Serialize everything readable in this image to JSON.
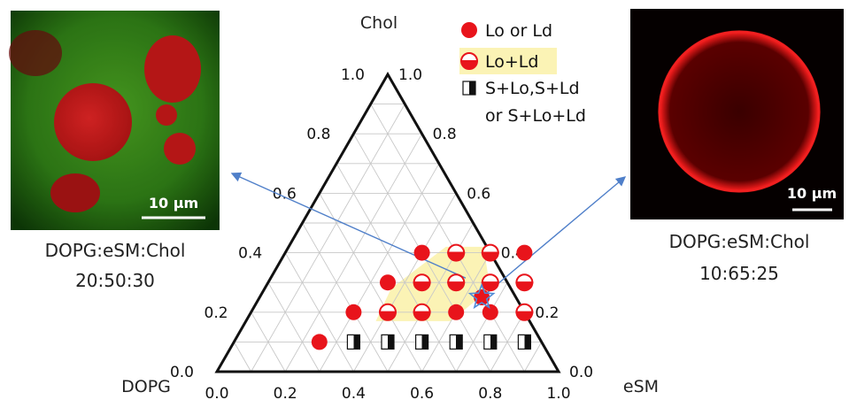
{
  "ternary": {
    "apex_labels": {
      "top": "Chol",
      "left": "DOPG",
      "right": "eSM"
    },
    "ticks": {
      "bottom": [
        "0.0",
        "0.2",
        "0.4",
        "0.6",
        "0.8",
        "1.0"
      ],
      "left": [
        "1.0",
        "0.8",
        "0.6",
        "0.4",
        "0.2",
        "0.0"
      ],
      "right": [
        "1.0",
        "0.8",
        "0.6",
        "0.4",
        "0.2",
        "0.0"
      ]
    },
    "colors": {
      "lo_ld": "#e8141b",
      "lo_plus_ld_region": "#fbf3b5",
      "arrow": "#4f7fc9",
      "star": "#4f8ad6"
    }
  },
  "legend": {
    "lo_or_ld": "Lo or Ld",
    "lo_plus_ld": "Lo+Ld",
    "solid_line1": "S+Lo,S+Ld",
    "solid_line2": "or S+Lo+Ld"
  },
  "left_panel": {
    "scale_bar": "10 µm",
    "caption_line1": "DOPG:eSM:Chol",
    "caption_line2": "20:50:30"
  },
  "right_panel": {
    "scale_bar": "10 µm",
    "caption_line1": "DOPG:eSM:Chol",
    "caption_line2": "10:65:25"
  },
  "chart_data": {
    "type": "scatter",
    "axes": [
      "DOPG",
      "eSM",
      "Chol"
    ],
    "points": [
      {
        "eSM": 0.25,
        "Chol": 0.1,
        "phase": "Lo or Ld"
      },
      {
        "eSM": 0.3,
        "Chol": 0.2,
        "phase": "Lo or Ld"
      },
      {
        "eSM": 0.35,
        "Chol": 0.3,
        "phase": "Lo or Ld"
      },
      {
        "eSM": 0.4,
        "Chol": 0.4,
        "phase": "Lo or Ld"
      },
      {
        "eSM": 0.5,
        "Chol": 0.2,
        "phase": "Lo+Ld"
      },
      {
        "eSM": 0.55,
        "Chol": 0.3,
        "phase": "Lo+Ld"
      },
      {
        "eSM": 0.5,
        "Chol": 0.4,
        "phase": "Lo+Ld"
      },
      {
        "eSM": 0.6,
        "Chol": 0.4,
        "phase": "Lo+Ld"
      },
      {
        "eSM": 0.45,
        "Chol": 0.3,
        "phase": "Lo+Ld"
      },
      {
        "eSM": 0.4,
        "Chol": 0.2,
        "phase": "Lo+Ld"
      },
      {
        "eSM": 0.65,
        "Chol": 0.3,
        "phase": "Lo+Ld"
      },
      {
        "eSM": 0.7,
        "Chol": 0.4,
        "phase": "Lo or Ld"
      },
      {
        "eSM": 0.6,
        "Chol": 0.2,
        "phase": "Lo or Ld"
      },
      {
        "eSM": 0.7,
        "Chol": 0.2,
        "phase": "Lo or Ld"
      },
      {
        "eSM": 0.75,
        "Chol": 0.3,
        "phase": "Lo+Ld"
      },
      {
        "eSM": 0.65,
        "Chol": 0.25,
        "phase": "Lo or Ld"
      },
      {
        "eSM": 0.8,
        "Chol": 0.2,
        "phase": "Lo+Ld"
      },
      {
        "eSM": 0.35,
        "Chol": 0.1,
        "phase": "S+Lo,S+Ld or S+Lo+Ld"
      },
      {
        "eSM": 0.45,
        "Chol": 0.1,
        "phase": "S+Lo,S+Ld or S+Lo+Ld"
      },
      {
        "eSM": 0.55,
        "Chol": 0.1,
        "phase": "S+Lo,S+Ld or S+Lo+Ld"
      },
      {
        "eSM": 0.65,
        "Chol": 0.1,
        "phase": "S+Lo,S+Ld or S+Lo+Ld"
      },
      {
        "eSM": 0.75,
        "Chol": 0.1,
        "phase": "S+Lo,S+Ld or S+Lo+Ld"
      },
      {
        "eSM": 0.85,
        "Chol": 0.1,
        "phase": "S+Lo,S+Ld or S+Lo+Ld"
      }
    ],
    "highlighted": [
      {
        "eSM": 0.5,
        "Chol": 0.3,
        "label": "20:50:30"
      },
      {
        "eSM": 0.65,
        "Chol": 0.25,
        "label": "10:65:25"
      }
    ],
    "grid": true
  }
}
